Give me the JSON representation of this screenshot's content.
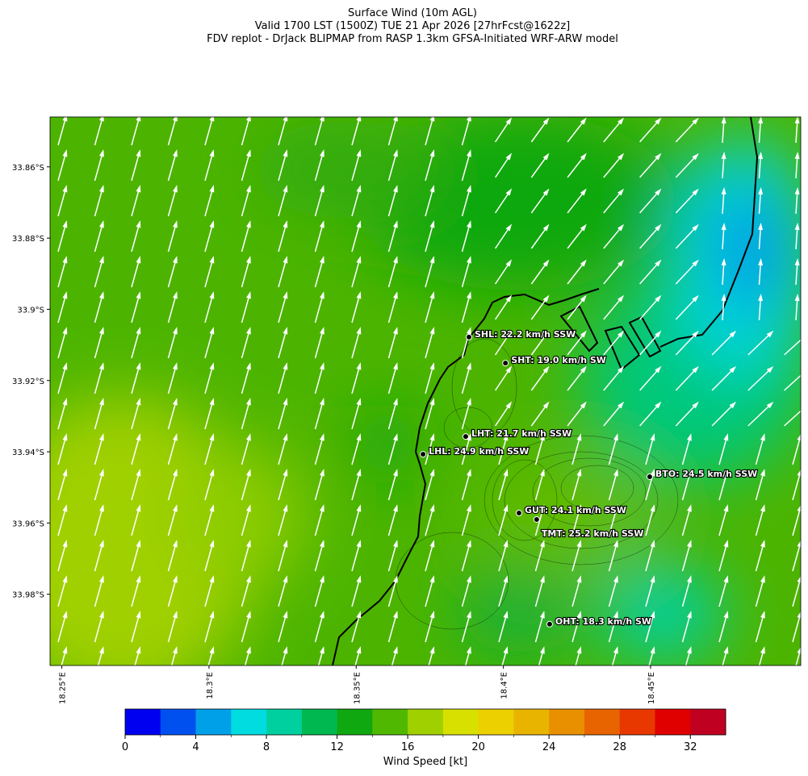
{
  "title": [
    "Surface Wind (10m AGL)",
    "Valid 1700 LST (1500Z) TUE 21 Apr 2026 [27hrFcst@1622z]",
    "FDV replot - DrJack BLIPMAP from RASP 1.3km GFSA-Initiated WRF-ARW model"
  ],
  "map": {
    "xlim": [
      18.246,
      18.501
    ],
    "ylim": [
      -34.0,
      -33.846
    ],
    "xticks": [
      {
        "value": 18.25,
        "label": "18.25°E"
      },
      {
        "value": 18.3,
        "label": "18.3°E"
      },
      {
        "value": 18.35,
        "label": "18.35°E"
      },
      {
        "value": 18.4,
        "label": "18.4°E"
      },
      {
        "value": 18.45,
        "label": "18.45°E"
      }
    ],
    "yticks": [
      {
        "value": -33.86,
        "label": "33.86°S"
      },
      {
        "value": -33.88,
        "label": "33.88°S"
      },
      {
        "value": -33.9,
        "label": "33.9°S"
      },
      {
        "value": -33.92,
        "label": "33.92°S"
      },
      {
        "value": -33.94,
        "label": "33.94°S"
      },
      {
        "value": -33.96,
        "label": "33.96°S"
      },
      {
        "value": -33.98,
        "label": "33.98°S"
      }
    ],
    "stations": [
      {
        "label": "SHL: 22.2 km/h SSW",
        "lon": 18.3883,
        "lat": -33.9078
      },
      {
        "label": "SHT: 19.0 km/h SW",
        "lon": 18.4007,
        "lat": -33.9151
      },
      {
        "label": "LHT: 21.7 km/h SSW",
        "lon": 18.3872,
        "lat": -33.9357
      },
      {
        "label": "LHL: 24.9 km/h SSW",
        "lon": 18.3727,
        "lat": -33.9407
      },
      {
        "label": "BTO: 24.5 km/h SSW",
        "lon": 18.4497,
        "lat": -33.947
      },
      {
        "label": "GUT: 24.1 km/h SSW",
        "lon": 18.4053,
        "lat": -33.9572
      },
      {
        "label": "TMT: 25.2 km/h SSW",
        "lon": 18.4113,
        "lat": -33.959
      },
      {
        "label": "OHT: 18.3 km/h SW",
        "lon": 18.4157,
        "lat": -33.9884
      }
    ]
  },
  "colorbar": {
    "range": [
      0,
      34
    ],
    "ticks": [
      0,
      4,
      8,
      12,
      16,
      20,
      24,
      28,
      32
    ],
    "label": "Wind Speed [kt]",
    "colors": [
      "#0000f0",
      "#0050f0",
      "#00a0e8",
      "#00dce0",
      "#00d0a0",
      "#00b850",
      "#10a810",
      "#50b800",
      "#a0d000",
      "#d8e000",
      "#ecd000",
      "#e8b400",
      "#e89000",
      "#e86400",
      "#e83800",
      "#e00000",
      "#c00020"
    ]
  }
}
